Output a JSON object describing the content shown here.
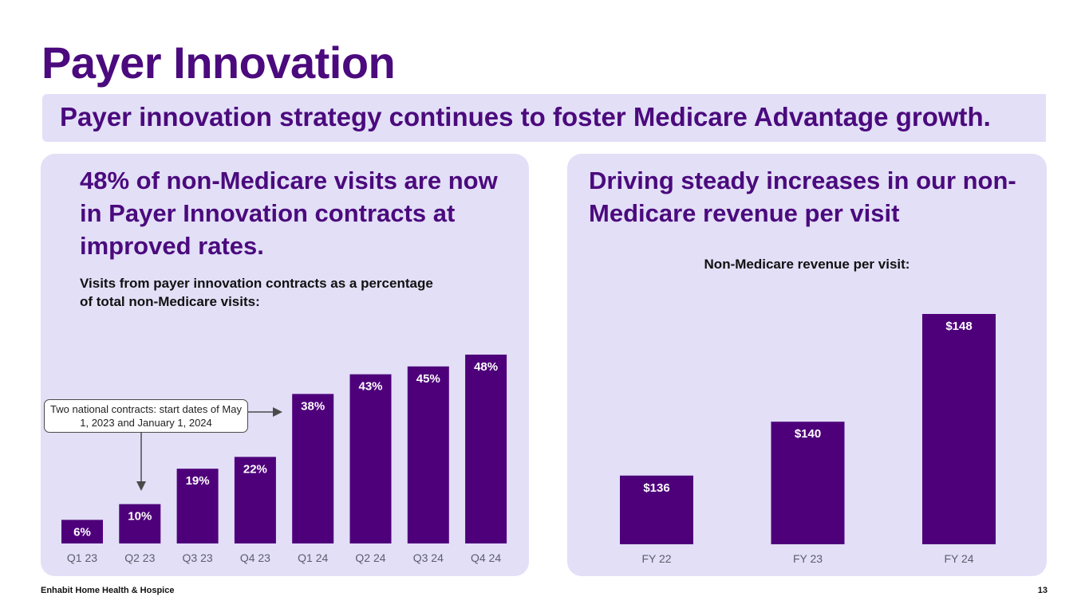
{
  "slide": {
    "title": "Payer Innovation",
    "banner": "Payer innovation strategy continues to foster Medicare Advantage growth.",
    "footer_company": "Enhabit Home Health & Hospice",
    "page_number": "13"
  },
  "left_panel": {
    "heading": "48% of non-Medicare visits are now in Payer Innovation contracts at improved rates.",
    "subtitle": "Visits from payer innovation contracts as a percentage of total non-Medicare visits:",
    "callout": "Two national contracts: start dates of May 1, 2023 and January 1, 2024"
  },
  "right_panel": {
    "heading": "Driving steady increases in our non-Medicare revenue per visit",
    "subtitle": "Non-Medicare revenue per visit:"
  },
  "colors": {
    "brand_purple": "#4b0a7d",
    "bar_purple": "#4e007a",
    "panel_lavender": "#e2dff7"
  },
  "chart_data": [
    {
      "type": "bar",
      "title": "Visits from payer innovation contracts as a percentage of total non-Medicare visits",
      "categories": [
        "Q1 23",
        "Q2 23",
        "Q3 23",
        "Q4 23",
        "Q1 24",
        "Q2 24",
        "Q3 24",
        "Q4 24"
      ],
      "values": [
        6,
        10,
        19,
        22,
        38,
        43,
        45,
        48
      ],
      "data_labels": [
        "6%",
        "10%",
        "19%",
        "22%",
        "38%",
        "43%",
        "45%",
        "48%"
      ],
      "unit": "%",
      "xlabel": "",
      "ylabel": "",
      "ylim": [
        0,
        48
      ],
      "grid": false,
      "legend": "none",
      "annotations": [
        {
          "text": "Two national contracts: start dates of May 1, 2023 and January 1, 2024",
          "points_to": [
            "Q2 23",
            "Q1 24"
          ]
        }
      ]
    },
    {
      "type": "bar",
      "title": "Non-Medicare revenue per visit",
      "categories": [
        "FY 22",
        "FY 23",
        "FY 24"
      ],
      "values": [
        136,
        140,
        148
      ],
      "data_labels": [
        "$136",
        "$140",
        "$148"
      ],
      "unit": "$",
      "xlabel": "",
      "ylabel": "",
      "ylim": [
        130.9,
        148
      ],
      "grid": false,
      "legend": "none"
    }
  ]
}
